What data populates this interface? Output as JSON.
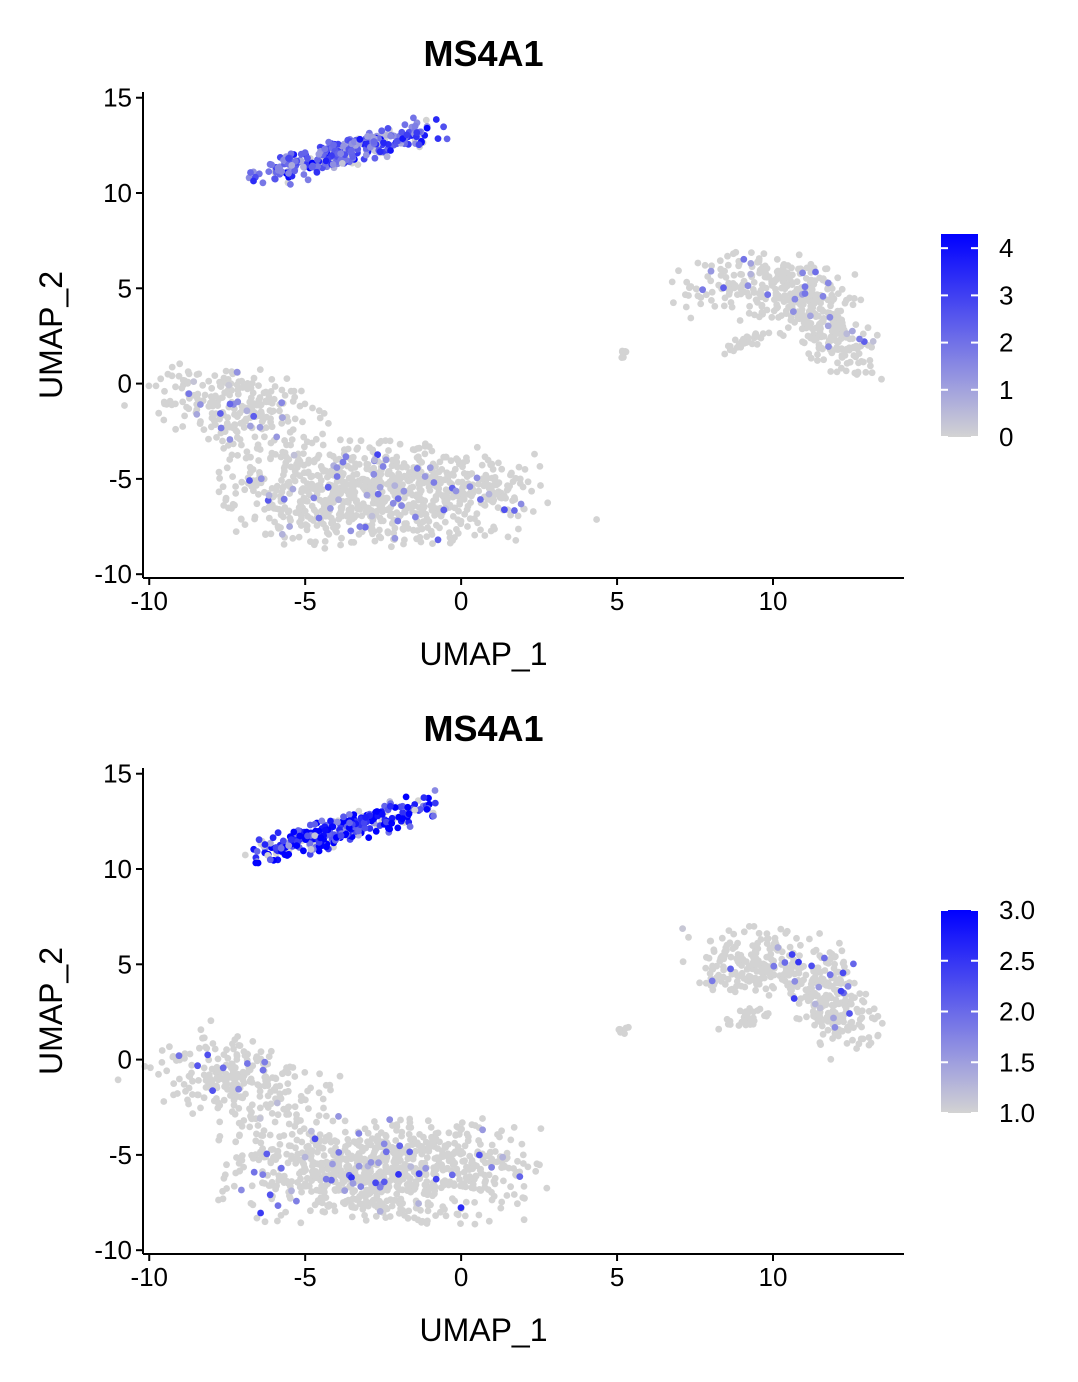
{
  "chart_data": [
    {
      "type": "scatter",
      "title": "MS4A1",
      "xlabel": "UMAP_1",
      "ylabel": "UMAP_2",
      "xlim": [
        -10.2,
        14.2
      ],
      "ylim": [
        -10.2,
        15.3
      ],
      "x_ticks": [
        "-10",
        "-5",
        "0",
        "5",
        "10"
      ],
      "y_ticks": [
        "-10",
        "-5",
        "0",
        "5",
        "10",
        "15"
      ],
      "color_scale": {
        "low": "#d3d3d3",
        "high": "#0000ff",
        "min": 0,
        "max": 4.3
      },
      "legend_ticks": [
        "0",
        "1",
        "2",
        "3",
        "4"
      ],
      "legend_position": "right",
      "grid": false,
      "clusters": [
        {
          "name": "",
          "cx": -3.7,
          "cy": 12.1,
          "sx": 1.6,
          "sy": 0.35,
          "angle": 25,
          "n": 320,
          "expr_frac": 0.82,
          "expr_mean": 2.3,
          "expr_sd": 0.9
        },
        {
          "name": "",
          "cx": -2.5,
          "cy": -5.8,
          "sx": 2.4,
          "sy": 1.3,
          "angle": 0,
          "n": 900,
          "expr_frac": 0.06,
          "expr_mean": 1.6,
          "expr_sd": 0.6
        },
        {
          "name": "",
          "cx": -7.2,
          "cy": -1.2,
          "sx": 1.5,
          "sy": 1.0,
          "angle": -35,
          "n": 260,
          "expr_frac": 0.05,
          "expr_mean": 1.6,
          "expr_sd": 0.6
        },
        {
          "name": "",
          "cx": 9.8,
          "cy": 5.0,
          "sx": 1.4,
          "sy": 0.9,
          "angle": -10,
          "n": 240,
          "expr_frac": 0.06,
          "expr_mean": 1.5,
          "expr_sd": 0.6
        },
        {
          "name": "",
          "cx": 11.9,
          "cy": 2.8,
          "sx": 0.6,
          "sy": 1.4,
          "angle": 20,
          "n": 200,
          "expr_frac": 0.06,
          "expr_mean": 1.5,
          "expr_sd": 0.6
        },
        {
          "name": "",
          "cx": 9.2,
          "cy": 2.2,
          "sx": 0.55,
          "sy": 0.2,
          "angle": 30,
          "n": 30,
          "expr_frac": 0.0,
          "expr_mean": 0,
          "expr_sd": 0
        },
        {
          "name": "",
          "cx": 5.2,
          "cy": 1.5,
          "sx": 0.08,
          "sy": 0.12,
          "angle": 0,
          "n": 8,
          "expr_frac": 0.0,
          "expr_mean": 0,
          "expr_sd": 0
        }
      ]
    },
    {
      "type": "scatter",
      "title": "MS4A1",
      "xlabel": "UMAP_1",
      "ylabel": "UMAP_2",
      "xlim": [
        -10.2,
        14.2
      ],
      "ylim": [
        -10.2,
        15.3
      ],
      "x_ticks": [
        "-10",
        "-5",
        "0",
        "5",
        "10"
      ],
      "y_ticks": [
        "-10",
        "-5",
        "0",
        "5",
        "10",
        "15"
      ],
      "color_scale": {
        "low": "#d3d3d3",
        "high": "#0000ff",
        "min": 1.0,
        "max": 3.0
      },
      "legend_ticks": [
        "1.0",
        "1.5",
        "2.0",
        "2.5",
        "3.0"
      ],
      "legend_position": "right",
      "grid": false,
      "clusters": [
        {
          "name": "",
          "cx": -3.7,
          "cy": 12.1,
          "sx": 1.6,
          "sy": 0.35,
          "angle": 25,
          "n": 320,
          "expr_frac": 0.85,
          "expr_mean": 2.6,
          "expr_sd": 0.7
        },
        {
          "name": "",
          "cx": -2.5,
          "cy": -5.8,
          "sx": 2.4,
          "sy": 1.3,
          "angle": 0,
          "n": 900,
          "expr_frac": 0.06,
          "expr_mean": 1.8,
          "expr_sd": 0.4
        },
        {
          "name": "",
          "cx": -7.2,
          "cy": -1.2,
          "sx": 1.5,
          "sy": 1.0,
          "angle": -35,
          "n": 260,
          "expr_frac": 0.05,
          "expr_mean": 1.8,
          "expr_sd": 0.4
        },
        {
          "name": "",
          "cx": 9.8,
          "cy": 5.0,
          "sx": 1.4,
          "sy": 0.9,
          "angle": -10,
          "n": 240,
          "expr_frac": 0.06,
          "expr_mean": 1.8,
          "expr_sd": 0.4
        },
        {
          "name": "",
          "cx": 11.9,
          "cy": 2.8,
          "sx": 0.6,
          "sy": 1.4,
          "angle": 20,
          "n": 200,
          "expr_frac": 0.06,
          "expr_mean": 1.8,
          "expr_sd": 0.4
        },
        {
          "name": "",
          "cx": 9.2,
          "cy": 2.2,
          "sx": 0.55,
          "sy": 0.2,
          "angle": 30,
          "n": 30,
          "expr_frac": 0.0,
          "expr_mean": 0,
          "expr_sd": 0
        },
        {
          "name": "",
          "cx": 5.2,
          "cy": 1.5,
          "sx": 0.08,
          "sy": 0.12,
          "angle": 0,
          "n": 8,
          "expr_frac": 0.0,
          "expr_mean": 0,
          "expr_sd": 0
        }
      ]
    }
  ]
}
